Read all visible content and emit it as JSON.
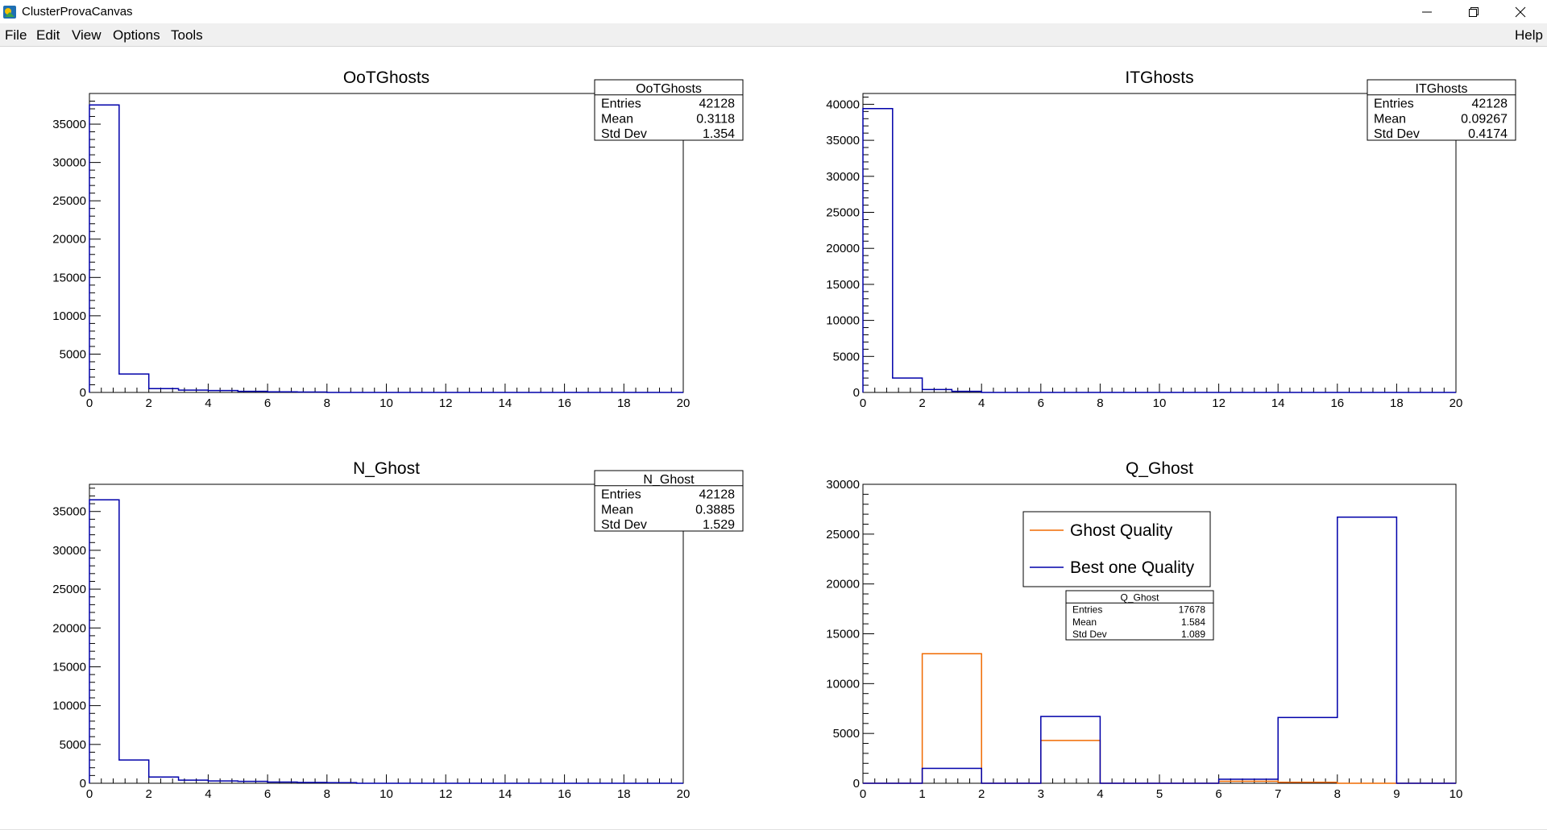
{
  "window": {
    "title": "ClusterProvaCanvas",
    "minimize_glyph": "–",
    "restore_glyph": "❐",
    "close_glyph": "✕"
  },
  "menu": {
    "file": "File",
    "edit": "Edit",
    "view": "View",
    "options": "Options",
    "tools": "Tools",
    "help": "Help"
  },
  "colors": {
    "blue": "#0000aa",
    "orange": "#f06a00",
    "frame": "#000000"
  },
  "chart_data": [
    {
      "type": "bar",
      "title": "OoTGhosts",
      "xlim": [
        0,
        20
      ],
      "ylim": [
        0,
        39000
      ],
      "x_ticks": [
        0,
        2,
        4,
        6,
        8,
        10,
        12,
        14,
        16,
        18,
        20
      ],
      "y_ticks": [
        0,
        5000,
        10000,
        15000,
        20000,
        25000,
        30000,
        35000
      ],
      "bin_width": 1,
      "series": [
        {
          "color": "#0000aa",
          "values": [
            37500,
            2400,
            500,
            300,
            250,
            150,
            80,
            50,
            0,
            0,
            0,
            0,
            0,
            0,
            0,
            0,
            0,
            0,
            0,
            0
          ]
        }
      ],
      "stats": {
        "name": "OoTGhosts",
        "rows": [
          {
            "label": "Entries",
            "value": "42128"
          },
          {
            "label": "Mean",
            "value": "0.3118"
          },
          {
            "label": "Std Dev",
            "value": "1.354"
          }
        ]
      }
    },
    {
      "type": "bar",
      "title": "ITGhosts",
      "xlim": [
        0,
        20
      ],
      "ylim": [
        0,
        41500
      ],
      "x_ticks": [
        0,
        2,
        4,
        6,
        8,
        10,
        12,
        14,
        16,
        18,
        20
      ],
      "y_ticks": [
        0,
        5000,
        10000,
        15000,
        20000,
        25000,
        30000,
        35000,
        40000
      ],
      "bin_width": 1,
      "series": [
        {
          "color": "#0000aa",
          "values": [
            39400,
            2000,
            400,
            150,
            0,
            0,
            0,
            0,
            0,
            0,
            0,
            0,
            0,
            0,
            0,
            0,
            0,
            0,
            0,
            0
          ]
        }
      ],
      "stats": {
        "name": "ITGhosts",
        "rows": [
          {
            "label": "Entries",
            "value": "42128"
          },
          {
            "label": "Mean",
            "value": "0.09267"
          },
          {
            "label": "Std Dev",
            "value": "0.4174"
          }
        ]
      }
    },
    {
      "type": "bar",
      "title": "N_Ghost",
      "xlim": [
        0,
        20
      ],
      "ylim": [
        0,
        38500
      ],
      "x_ticks": [
        0,
        2,
        4,
        6,
        8,
        10,
        12,
        14,
        16,
        18,
        20
      ],
      "y_ticks": [
        0,
        5000,
        10000,
        15000,
        20000,
        25000,
        30000,
        35000
      ],
      "bin_width": 1,
      "series": [
        {
          "color": "#0000aa",
          "values": [
            36500,
            3000,
            800,
            400,
            300,
            250,
            150,
            100,
            80,
            0,
            0,
            0,
            0,
            0,
            0,
            0,
            0,
            0,
            0,
            0
          ]
        }
      ],
      "stats": {
        "name": "N_Ghost",
        "rows": [
          {
            "label": "Entries",
            "value": "42128"
          },
          {
            "label": "Mean",
            "value": "0.3885"
          },
          {
            "label": "Std Dev",
            "value": "1.529"
          }
        ]
      }
    },
    {
      "type": "bar",
      "title": "Q_Ghost",
      "xlim": [
        0,
        10
      ],
      "ylim": [
        0,
        30000
      ],
      "x_ticks": [
        0,
        1,
        2,
        3,
        4,
        5,
        6,
        7,
        8,
        9,
        10
      ],
      "y_ticks": [
        0,
        5000,
        10000,
        15000,
        20000,
        25000,
        30000
      ],
      "bin_width": 1,
      "series": [
        {
          "name": "Ghost Quality",
          "color": "#f06a00",
          "values": [
            0,
            13000,
            0,
            4300,
            0,
            0,
            200,
            100,
            0,
            0
          ]
        },
        {
          "name": "Best one Quality",
          "color": "#0000aa",
          "values": [
            0,
            1500,
            0,
            6700,
            0,
            0,
            400,
            6600,
            26700,
            0
          ]
        }
      ],
      "legend": {
        "position": "top-center"
      },
      "stats": {
        "name": "Q_Ghost",
        "rows": [
          {
            "label": "Entries",
            "value": "17678"
          },
          {
            "label": "Mean",
            "value": "1.584"
          },
          {
            "label": "Std Dev",
            "value": "1.089"
          }
        ]
      }
    }
  ]
}
